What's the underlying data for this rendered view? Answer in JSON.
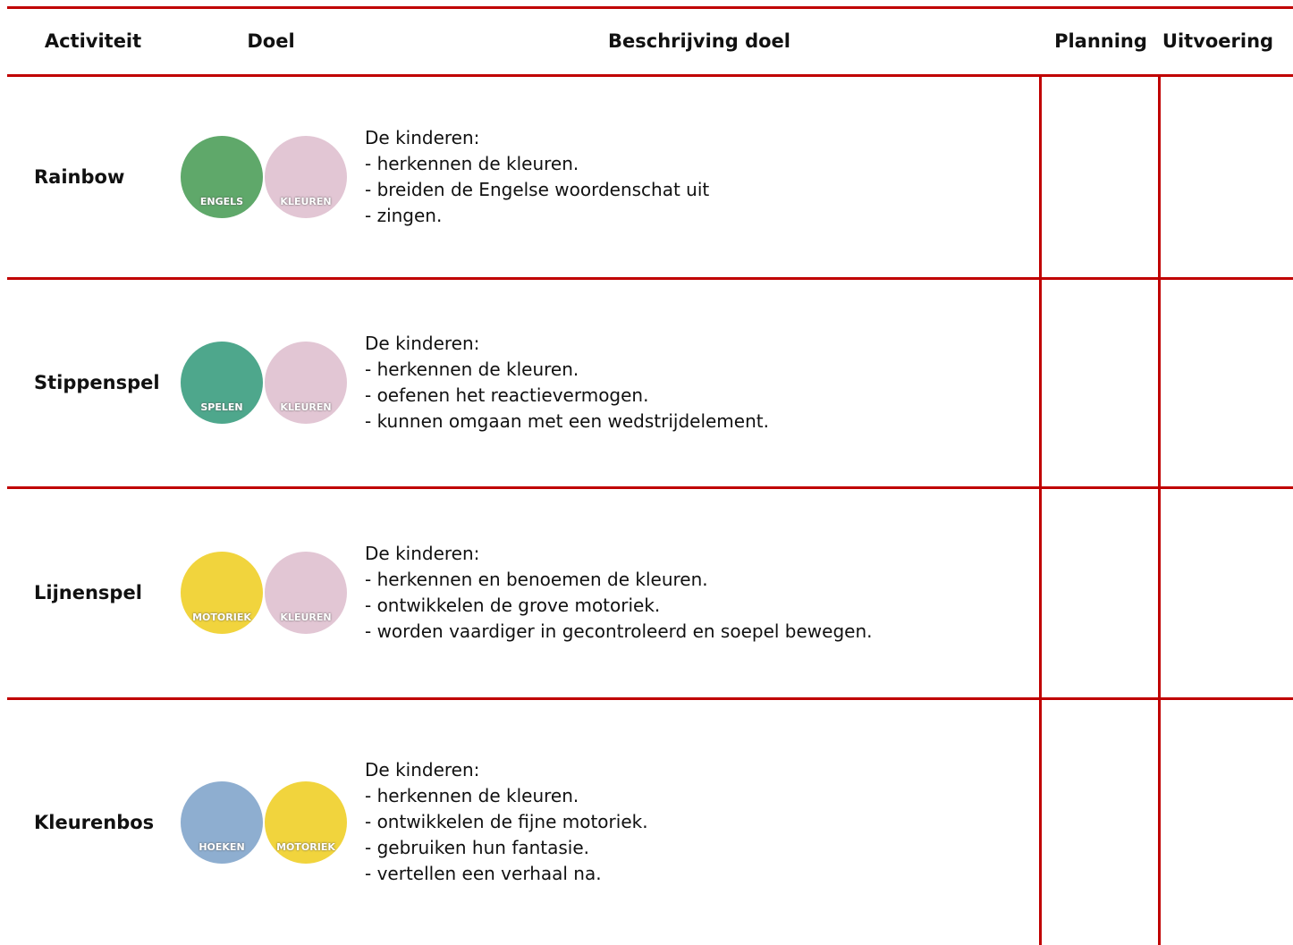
{
  "header": [
    "Activiteit",
    "Doel",
    "Beschrijving doel",
    "Planning",
    "Uitvoering"
  ],
  "rows": [
    {
      "activity": "Rainbow",
      "icons": [
        {
          "label": "ENGELS",
          "color": "#5fa86a"
        },
        {
          "label": "KLEUREN",
          "color": "#e2c6d4"
        }
      ],
      "intro": "De kinderen:",
      "items": [
        "- herkennen de kleuren.",
        "- breiden de Engelse woordenschat uit",
        "- zingen."
      ]
    },
    {
      "activity": "Stippenspel",
      "icons": [
        {
          "label": "SPELEN",
          "color": "#4ea78c"
        },
        {
          "label": "KLEUREN",
          "color": "#e2c6d4"
        }
      ],
      "intro": "De kinderen:",
      "items": [
        "- herkennen de kleuren.",
        "- oefenen het reactievermogen.",
        "- kunnen omgaan met een wedstrijdelement."
      ]
    },
    {
      "activity": "Lijnenspel",
      "icons": [
        {
          "label": "MOTORIEK",
          "color": "#f1d43d"
        },
        {
          "label": "KLEUREN",
          "color": "#e2c6d4"
        }
      ],
      "intro": "De kinderen:",
      "items": [
        "- herkennen en benoemen de kleuren.",
        "- ontwikkelen de grove motoriek.",
        "- worden vaardiger in gecontroleerd en soepel bewegen."
      ]
    },
    {
      "activity": "Kleurenbos",
      "icons": [
        {
          "label": "HOEKEN",
          "color": "#8eaed0"
        },
        {
          "label": "MOTORIEK",
          "color": "#f1d43d"
        }
      ],
      "intro": "De kinderen:",
      "items": [
        "- herkennen de kleuren.",
        "- ontwikkelen de fijne motoriek.",
        "- gebruiken hun fantasie.",
        "- vertellen een verhaal na."
      ]
    }
  ]
}
